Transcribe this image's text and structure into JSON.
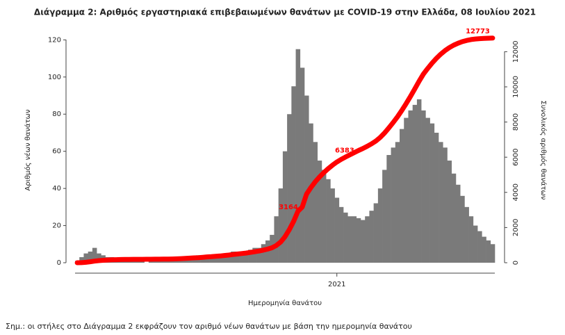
{
  "chart_data": {
    "type": "bar",
    "title": "Διάγραμμα 2: Αριθμός εργαστηριακά επιβεβαιωμένων θανάτων με COVID-19 στην Ελλάδα, 08 Ιουλίου 2021",
    "y_label": "Αριθμός νέων θανάτων",
    "y2_label": "Συνολικός αριθμός θανάτων",
    "x_label": "Ημερομηνία θανάτου",
    "note": "Σημ.: οι στήλες στο Διάγραμμα 2 εκφράζουν τον αριθμό νέων θανάτων με βάση την ημερομηνία θανάτου",
    "categories": [
      null,
      null,
      null,
      null,
      null,
      null,
      null,
      null,
      null,
      null,
      null,
      null,
      null,
      null,
      null,
      null,
      null,
      null,
      null,
      null,
      null,
      null,
      null,
      null,
      null,
      null,
      null,
      null,
      null,
      null,
      null,
      null,
      null,
      null,
      null,
      null,
      null,
      null,
      null,
      null,
      null,
      null,
      null,
      null,
      null,
      null,
      null,
      null,
      null,
      null,
      null,
      null,
      null,
      null,
      null,
      null,
      null,
      null,
      null,
      null,
      "2021",
      null,
      null,
      null,
      null,
      null,
      null,
      null,
      null,
      null,
      null,
      null,
      null,
      null,
      null,
      null,
      null,
      null,
      null,
      null,
      null,
      null,
      null,
      null,
      null,
      null,
      null,
      null,
      null,
      null,
      null,
      null,
      null,
      null,
      null,
      null,
      null
    ],
    "series": [
      {
        "color": "#7a7a7a",
        "values": [
          1,
          3,
          5,
          6,
          8,
          5,
          4,
          3,
          3,
          2,
          2,
          2,
          1,
          1,
          1,
          1,
          0,
          1,
          1,
          1,
          1,
          1,
          1,
          2,
          2,
          3,
          3,
          3,
          4,
          4,
          3,
          3,
          4,
          4,
          5,
          5,
          6,
          6,
          5,
          6,
          7,
          8,
          8,
          10,
          12,
          15,
          25,
          40,
          60,
          80,
          95,
          115,
          105,
          90,
          75,
          65,
          55,
          50,
          45,
          40,
          35,
          30,
          27,
          25,
          25,
          24,
          23,
          25,
          28,
          32,
          40,
          50,
          58,
          62,
          65,
          72,
          78,
          82,
          85,
          88,
          82,
          78,
          75,
          70,
          65,
          62,
          55,
          48,
          42,
          36,
          30,
          25,
          20,
          17,
          14,
          12,
          10
        ]
      },
      {
        "color": "#ff0000",
        "axis": "y2",
        "values": [
          0,
          5,
          25,
          55,
          90,
          120,
          140,
          155,
          165,
          175,
          180,
          185,
          190,
          192,
          193,
          195,
          196,
          198,
          200,
          203,
          206,
          210,
          215,
          222,
          232,
          245,
          260,
          275,
          290,
          310,
          330,
          345,
          365,
          385,
          410,
          435,
          465,
          495,
          520,
          550,
          585,
          625,
          665,
          715,
          775,
          850,
          975,
          1175,
          1475,
          1875,
          2350,
          2925,
          3164,
          3900,
          4275,
          4600,
          4875,
          5125,
          5350,
          5550,
          5725,
          5875,
          6010,
          6135,
          6260,
          6383,
          6495,
          6620,
          6760,
          6920,
          7120,
          7370,
          7660,
          7970,
          8295,
          8655,
          9045,
          9455,
          9880,
          10320,
          10730,
          11050,
          11350,
          11620,
          11860,
          12060,
          12230,
          12370,
          12480,
          12570,
          12640,
          12690,
          12720,
          12740,
          12755,
          12765,
          12773
        ],
        "value_labels": [
          null,
          null,
          null,
          null,
          null,
          null,
          null,
          null,
          null,
          null,
          null,
          null,
          null,
          null,
          null,
          null,
          null,
          null,
          null,
          null,
          null,
          null,
          null,
          null,
          null,
          null,
          null,
          null,
          null,
          null,
          null,
          null,
          null,
          null,
          null,
          null,
          null,
          null,
          null,
          null,
          null,
          null,
          null,
          null,
          null,
          null,
          null,
          null,
          null,
          null,
          null,
          null,
          "3164",
          null,
          null,
          null,
          null,
          null,
          null,
          null,
          null,
          null,
          null,
          null,
          null,
          "6383",
          null,
          null,
          null,
          null,
          null,
          null,
          null,
          null,
          null,
          null,
          null,
          null,
          null,
          null,
          null,
          null,
          null,
          null,
          null,
          null,
          null,
          null,
          null,
          null,
          null,
          null,
          null,
          null,
          null,
          null,
          "12773"
        ]
      }
    ],
    "ylim": [
      0,
      125
    ],
    "yticks": [
      0,
      20,
      40,
      60,
      80,
      100,
      120
    ],
    "y2lim": [
      0,
      13200
    ],
    "y2ticks": [
      0,
      2000,
      4000,
      6000,
      8000,
      10000,
      12000
    ]
  }
}
